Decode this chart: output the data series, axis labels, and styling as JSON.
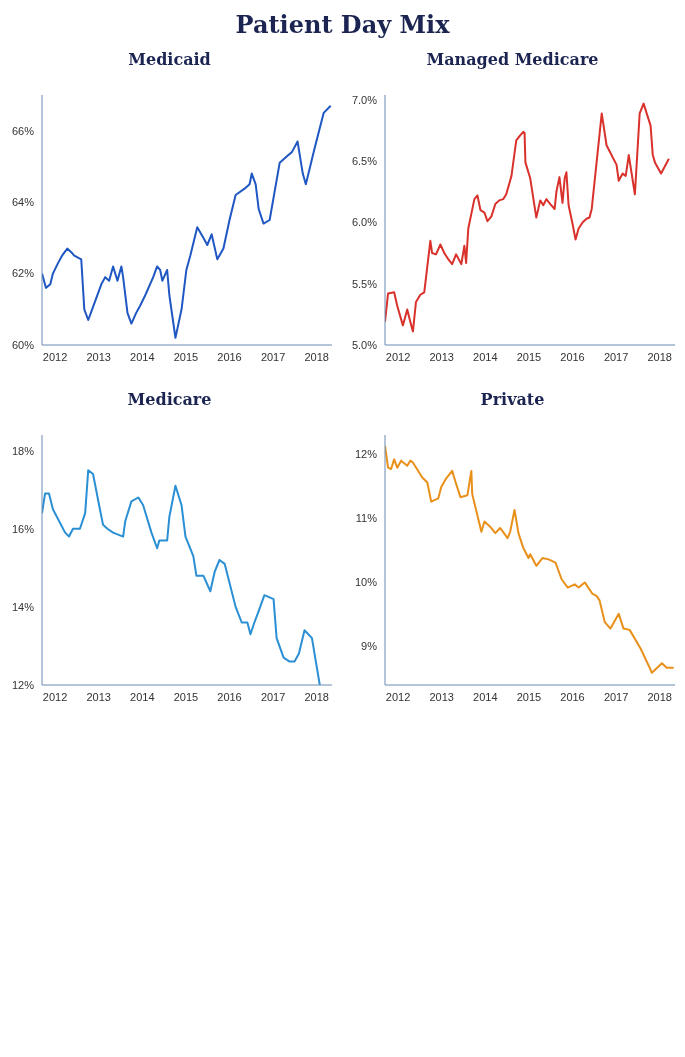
{
  "chart_data": [
    {
      "type": "other",
      "title": "Patient Day Mix"
    },
    {
      "type": "line",
      "title": "Medicaid",
      "color": "#1f57c3",
      "xlim": [
        2011.7,
        2018.35
      ],
      "xticks": [
        2012,
        2013,
        2014,
        2015,
        2016,
        2017,
        2018
      ],
      "ylim": [
        60,
        67
      ],
      "yticks": [
        {
          "value": 60,
          "label": "60%"
        },
        {
          "value": 62,
          "label": "62%"
        },
        {
          "value": 64,
          "label": "64%"
        },
        {
          "value": 66,
          "label": "66%"
        }
      ],
      "x": [
        2011.7,
        2011.79,
        2011.89,
        2011.95,
        2012.07,
        2012.16,
        2012.28,
        2012.37,
        2012.44,
        2012.6,
        2012.67,
        2012.76,
        2012.85,
        2013.06,
        2013.15,
        2013.24,
        2013.33,
        2013.43,
        2013.52,
        2013.56,
        2013.66,
        2013.75,
        2013.86,
        2013.95,
        2014.07,
        2014.25,
        2014.34,
        2014.41,
        2014.46,
        2014.57,
        2014.62,
        2014.76,
        2014.9,
        2015.01,
        2015.1,
        2015.26,
        2015.4,
        2015.49,
        2015.59,
        2015.72,
        2015.86,
        2016.0,
        2016.14,
        2016.37,
        2016.46,
        2016.51,
        2016.6,
        2016.67,
        2016.78,
        2016.92,
        2017.15,
        2017.33,
        2017.43,
        2017.56,
        2017.68,
        2017.75,
        2017.95,
        2018.16,
        2018.32
      ],
      "values": [
        62.0,
        61.6,
        61.7,
        62.0,
        62.3,
        62.5,
        62.7,
        62.6,
        62.5,
        62.4,
        61.0,
        60.7,
        61.0,
        61.7,
        61.9,
        61.8,
        62.2,
        61.8,
        62.2,
        61.9,
        60.9,
        60.6,
        60.9,
        61.1,
        61.4,
        61.9,
        62.2,
        62.1,
        61.8,
        62.1,
        61.4,
        60.2,
        61.0,
        62.1,
        62.5,
        63.3,
        63.0,
        62.8,
        63.1,
        62.4,
        62.7,
        63.5,
        64.2,
        64.4,
        64.5,
        64.8,
        64.5,
        63.8,
        63.4,
        63.5,
        65.1,
        65.3,
        65.4,
        65.7,
        64.8,
        64.5,
        65.5,
        66.5,
        66.7
      ]
    },
    {
      "type": "line",
      "title": "Managed Medicare",
      "color": "#d9312b",
      "xlim": [
        2011.7,
        2018.35
      ],
      "xticks": [
        2012,
        2013,
        2014,
        2015,
        2016,
        2017,
        2018
      ],
      "ylim": [
        5,
        7.04
      ],
      "yticks": [
        {
          "value": 5,
          "label": "5.0%"
        },
        {
          "value": 5.5,
          "label": "5.5%"
        },
        {
          "value": 6,
          "label": "6.0%"
        },
        {
          "value": 6.5,
          "label": "6.5%"
        },
        {
          "value": 7,
          "label": "7.0%"
        }
      ],
      "x": [
        2011.7,
        2011.77,
        2011.91,
        2011.98,
        2012.11,
        2012.21,
        2012.28,
        2012.34,
        2012.41,
        2012.51,
        2012.6,
        2012.74,
        2012.78,
        2012.87,
        2012.97,
        2013.06,
        2013.15,
        2013.24,
        2013.33,
        2013.45,
        2013.52,
        2013.56,
        2013.61,
        2013.75,
        2013.82,
        2013.89,
        2013.98,
        2014.05,
        2014.14,
        2014.23,
        2014.32,
        2014.41,
        2014.48,
        2014.6,
        2014.71,
        2014.8,
        2014.87,
        2014.9,
        2014.92,
        2015.03,
        2015.17,
        2015.26,
        2015.33,
        2015.4,
        2015.49,
        2015.59,
        2015.63,
        2015.7,
        2015.77,
        2015.82,
        2015.86,
        2015.91,
        2016.0,
        2016.07,
        2016.14,
        2016.23,
        2016.32,
        2016.39,
        2016.44,
        2016.67,
        2016.78,
        2017.01,
        2017.06,
        2017.15,
        2017.22,
        2017.29,
        2017.43,
        2017.54,
        2017.63,
        2017.79,
        2017.84,
        2017.89,
        2018.03,
        2018.21
      ],
      "values": [
        5.19,
        5.42,
        5.43,
        5.32,
        5.16,
        5.29,
        5.19,
        5.11,
        5.35,
        5.41,
        5.43,
        5.85,
        5.75,
        5.74,
        5.82,
        5.75,
        5.7,
        5.66,
        5.74,
        5.66,
        5.81,
        5.67,
        5.95,
        6.19,
        6.22,
        6.1,
        6.08,
        6.01,
        6.05,
        6.15,
        6.18,
        6.19,
        6.23,
        6.38,
        6.67,
        6.71,
        6.74,
        6.73,
        6.49,
        6.36,
        6.04,
        6.18,
        6.14,
        6.19,
        6.15,
        6.11,
        6.25,
        6.37,
        6.16,
        6.36,
        6.41,
        6.14,
        5.99,
        5.86,
        5.95,
        6.0,
        6.03,
        6.04,
        6.11,
        6.89,
        6.63,
        6.47,
        6.34,
        6.4,
        6.38,
        6.55,
        6.23,
        6.89,
        6.97,
        6.79,
        6.55,
        6.49,
        6.4,
        6.52
      ]
    },
    {
      "type": "line",
      "title": "Medicare",
      "color": "#2a8fd4",
      "xlim": [
        2011.7,
        2018.35
      ],
      "xticks": [
        2012,
        2013,
        2014,
        2015,
        2016,
        2017,
        2018
      ],
      "ylim": [
        12,
        18.4
      ],
      "yticks": [
        {
          "value": 12,
          "label": "12%"
        },
        {
          "value": 14,
          "label": "14%"
        },
        {
          "value": 16,
          "label": "16%"
        },
        {
          "value": 18,
          "label": "18%"
        }
      ],
      "x": [
        2011.7,
        2011.77,
        2011.86,
        2011.95,
        2012.23,
        2012.32,
        2012.41,
        2012.57,
        2012.69,
        2012.76,
        2012.87,
        2013.01,
        2013.1,
        2013.2,
        2013.33,
        2013.56,
        2013.61,
        2013.75,
        2013.91,
        2014.02,
        2014.21,
        2014.34,
        2014.39,
        2014.57,
        2014.62,
        2014.76,
        2014.9,
        2014.99,
        2015.17,
        2015.24,
        2015.4,
        2015.56,
        2015.66,
        2015.77,
        2015.89,
        2015.98,
        2016.14,
        2016.28,
        2016.41,
        2016.48,
        2016.57,
        2016.67,
        2016.8,
        2017.01,
        2017.08,
        2017.24,
        2017.38,
        2017.49,
        2017.59,
        2017.72,
        2017.89,
        2018.07
      ],
      "values": [
        16.4,
        16.9,
        16.9,
        16.5,
        15.9,
        15.8,
        16.0,
        16.0,
        16.4,
        17.5,
        17.4,
        16.6,
        16.1,
        16.0,
        15.9,
        15.8,
        16.2,
        16.7,
        16.8,
        16.6,
        15.9,
        15.5,
        15.7,
        15.7,
        16.3,
        17.1,
        16.6,
        15.8,
        15.3,
        14.8,
        14.8,
        14.4,
        14.9,
        15.2,
        15.1,
        14.7,
        14.0,
        13.6,
        13.6,
        13.3,
        13.6,
        13.9,
        14.3,
        14.2,
        13.2,
        12.7,
        12.6,
        12.6,
        12.8,
        13.4,
        13.2,
        12.0
      ]
    },
    {
      "type": "line",
      "title": "Private",
      "color": "#e8901a",
      "xlim": [
        2011.7,
        2018.35
      ],
      "xticks": [
        2012,
        2013,
        2014,
        2015,
        2016,
        2017,
        2018
      ],
      "ylim": [
        8.4,
        12.3
      ],
      "yticks": [
        {
          "value": 9,
          "label": "9%"
        },
        {
          "value": 10,
          "label": "10%"
        },
        {
          "value": 11,
          "label": "11%"
        },
        {
          "value": 12,
          "label": "12%"
        }
      ],
      "x": [
        2011.7,
        2011.77,
        2011.84,
        2011.91,
        2011.98,
        2012.07,
        2012.21,
        2012.28,
        2012.34,
        2012.55,
        2012.67,
        2012.76,
        2012.92,
        2012.99,
        2013.1,
        2013.24,
        2013.33,
        2013.43,
        2013.59,
        2013.68,
        2013.7,
        2013.91,
        2013.98,
        2014.11,
        2014.23,
        2014.34,
        2014.51,
        2014.57,
        2014.67,
        2014.76,
        2014.87,
        2014.99,
        2015.03,
        2015.17,
        2015.31,
        2015.45,
        2015.61,
        2015.75,
        2015.89,
        2016.05,
        2016.14,
        2016.28,
        2016.46,
        2016.55,
        2016.62,
        2016.74,
        2016.87,
        2017.06,
        2017.17,
        2017.31,
        2017.56,
        2017.79,
        2017.82,
        2018.05,
        2018.16,
        2018.32
      ],
      "values": [
        12.13,
        11.79,
        11.77,
        11.92,
        11.79,
        11.9,
        11.82,
        11.9,
        11.87,
        11.64,
        11.56,
        11.26,
        11.31,
        11.49,
        11.62,
        11.74,
        11.54,
        11.33,
        11.36,
        11.74,
        11.38,
        10.79,
        10.95,
        10.87,
        10.77,
        10.85,
        10.69,
        10.79,
        11.13,
        10.77,
        10.54,
        10.38,
        10.44,
        10.26,
        10.38,
        10.36,
        10.31,
        10.05,
        9.92,
        9.97,
        9.92,
        10.0,
        9.82,
        9.79,
        9.72,
        9.38,
        9.28,
        9.51,
        9.28,
        9.26,
        8.97,
        8.64,
        8.59,
        8.74,
        8.67,
        8.67
      ]
    }
  ]
}
